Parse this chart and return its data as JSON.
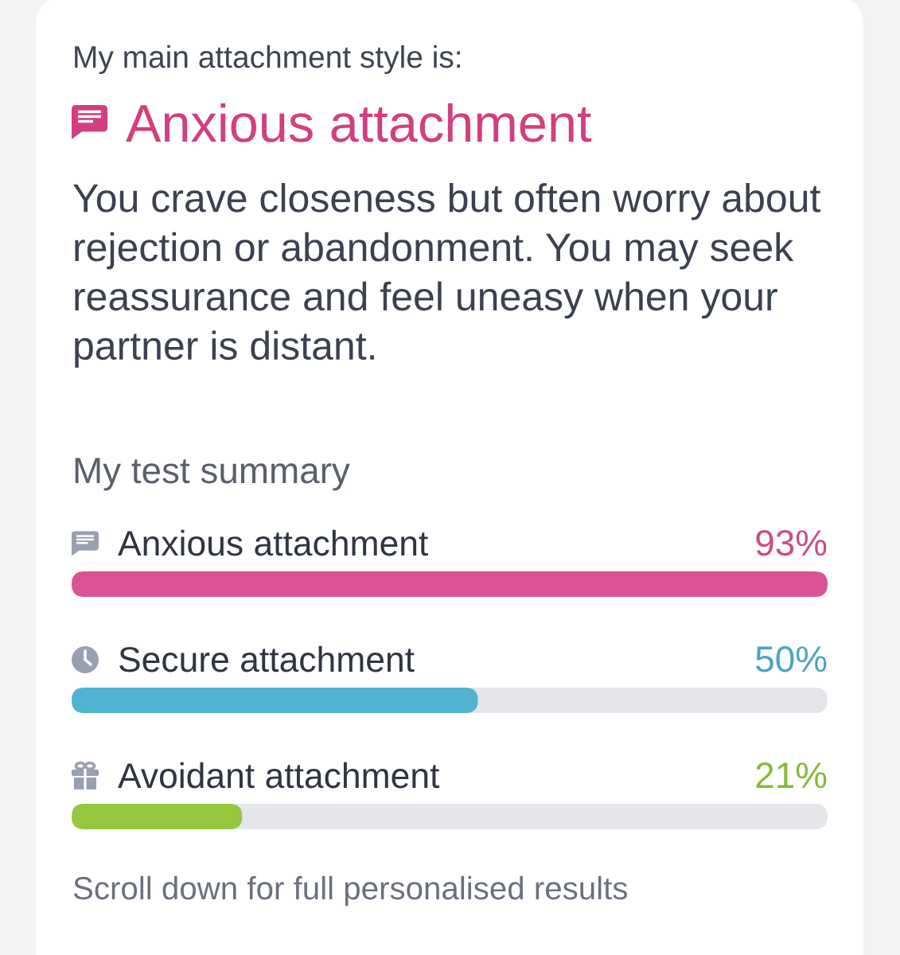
{
  "chart_data": {
    "type": "bar",
    "orientation": "horizontal",
    "title": "My test summary",
    "categories": [
      "Anxious attachment",
      "Secure attachment",
      "Avoidant attachment"
    ],
    "values": [
      93,
      50,
      21
    ],
    "colors": [
      "#db5394",
      "#52b2d1",
      "#93c83f"
    ],
    "value_labels": [
      "93%",
      "50%",
      "21%"
    ],
    "xlim": [
      0,
      93
    ],
    "tick_labels": false,
    "annotations": [
      "My main attachment style is:",
      "Anxious attachment",
      "You crave closeness but often worry about rejection or abandonment. You may seek reassurance and feel uneasy when your partner is distant.",
      "Scroll down for full personalised results"
    ]
  }
}
